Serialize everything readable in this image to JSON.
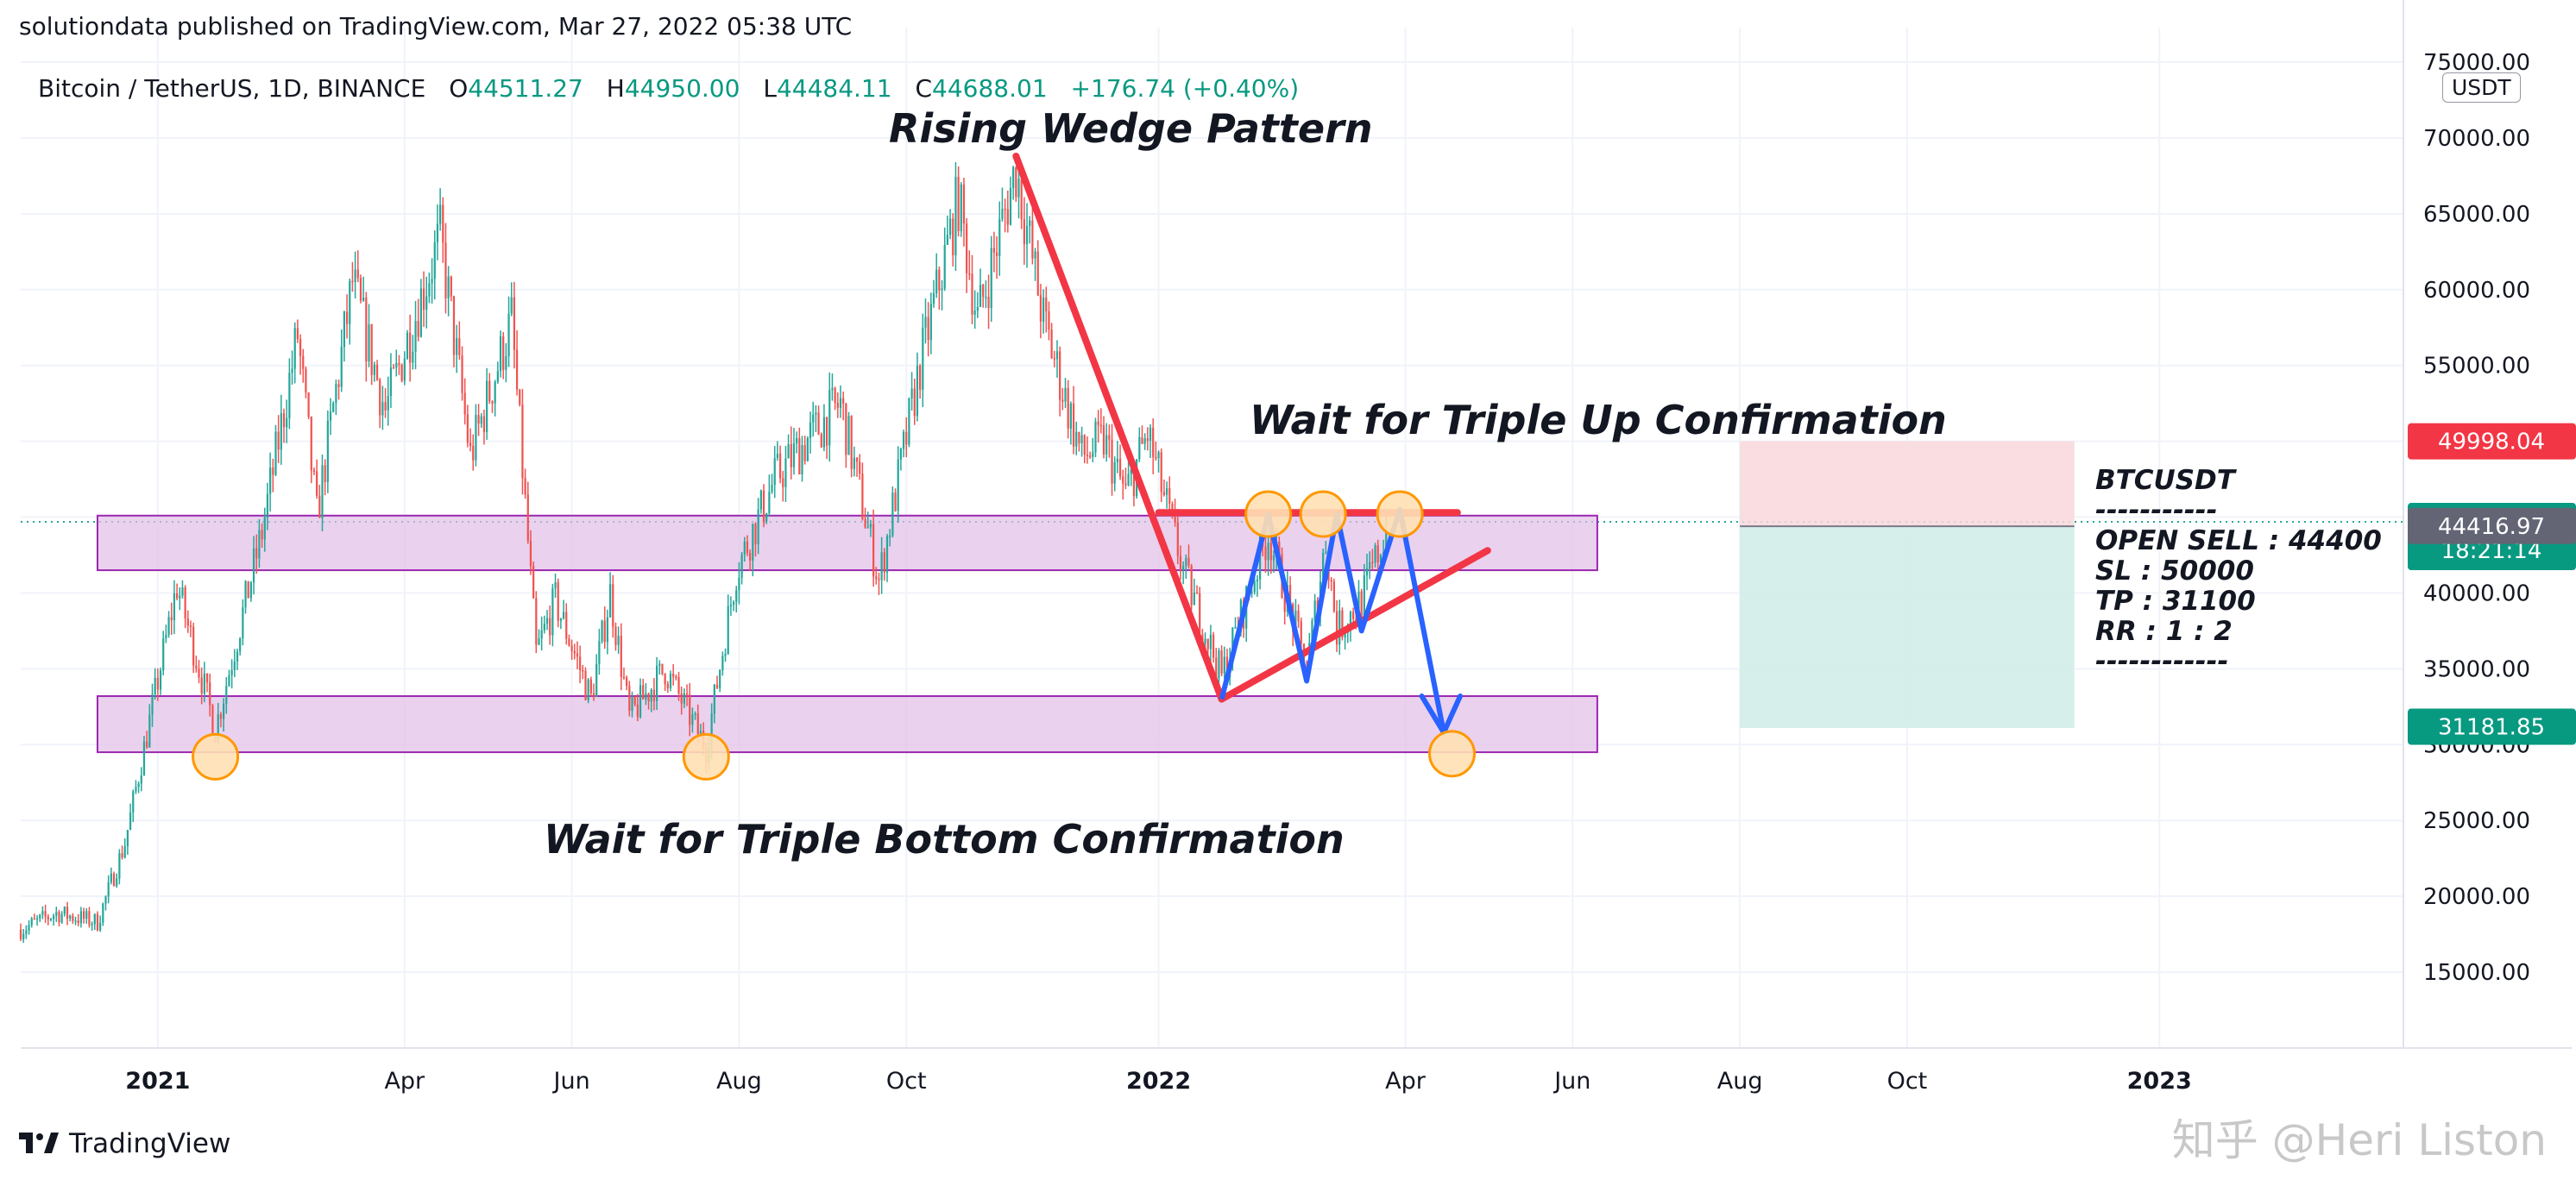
{
  "header": {
    "published": "solutiondata published on TradingView.com, Mar 27, 2022 05:38 UTC"
  },
  "legend": {
    "symbol": "Bitcoin / TetherUS, 1D, BINANCE",
    "open_label": "O",
    "open": "44511.27",
    "high_label": "H",
    "high": "44950.00",
    "low_label": "L",
    "low": "44484.11",
    "close_label": "C",
    "close": "44688.01",
    "change": "+176.74 (+0.40%)"
  },
  "currency_badge": "USDT",
  "annotations": {
    "rising_wedge": "Rising Wedge Pattern",
    "triple_up": "Wait for Triple Up Confirmation",
    "triple_bottom": "Wait for Triple Bottom Confirmation"
  },
  "trade_box": {
    "pair": "BTCUSDT",
    "sep1": "-----------",
    "open": "OPEN SELL : 44400",
    "sl": "SL : 50000",
    "tp": "TP : 31100",
    "rr": "RR : 1 : 2",
    "sep2": "------------"
  },
  "footer": {
    "logo_text": "TradingView",
    "watermark": "知乎 @Heri Liston"
  },
  "colors": {
    "up": "#26a69a",
    "down": "#ef5350",
    "zone_fill": "#e1bee7",
    "zone_stroke": "#9c27b0",
    "wedge": "#f23645",
    "pattern": "#2962ff",
    "marker_fill": "#ffe0b2",
    "marker_stroke": "#ff9800",
    "stop_fill": "#f8d7da",
    "target_fill": "#cfece6",
    "tag_red": "#f23645",
    "tag_green": "#089981",
    "tag_gray": "#636575"
  },
  "chart_data": {
    "type": "candlestick",
    "symbol": "BTCUSDT",
    "timeframe": "1D",
    "y_axis": {
      "ylim": [
        10000,
        75000
      ],
      "ticks": [
        "15000.00",
        "20000.00",
        "25000.00",
        "30000.00",
        "35000.00",
        "40000.00",
        "45000.00",
        "50000.00",
        "55000.00",
        "60000.00",
        "65000.00",
        "70000.00",
        "75000.00"
      ]
    },
    "x_axis": {
      "start": "2020-11-12",
      "end": "2023-03-31",
      "ticks": [
        {
          "label": "2021",
          "date": "2021-01-01",
          "bold": true
        },
        {
          "label": "Apr",
          "date": "2021-04-01"
        },
        {
          "label": "Jun",
          "date": "2021-06-01"
        },
        {
          "label": "Aug",
          "date": "2021-08-01"
        },
        {
          "label": "Oct",
          "date": "2021-10-01"
        },
        {
          "label": "2022",
          "date": "2022-01-01",
          "bold": true
        },
        {
          "label": "Apr",
          "date": "2022-04-01"
        },
        {
          "label": "Jun",
          "date": "2022-06-01"
        },
        {
          "label": "Aug",
          "date": "2022-08-01"
        },
        {
          "label": "Oct",
          "date": "2022-10-01"
        },
        {
          "label": "2023",
          "date": "2023-01-01",
          "bold": true
        }
      ]
    },
    "price_path": [
      [
        "2020-11-12",
        17800
      ],
      [
        "2020-11-25",
        18900
      ],
      [
        "2020-12-10",
        18300
      ],
      [
        "2020-12-20",
        23500
      ],
      [
        "2021-01-08",
        40500
      ],
      [
        "2021-01-22",
        31000
      ],
      [
        "2021-02-08",
        44000
      ],
      [
        "2021-02-21",
        57000
      ],
      [
        "2021-02-28",
        45000
      ],
      [
        "2021-03-13",
        60500
      ],
      [
        "2021-03-25",
        52000
      ],
      [
        "2021-04-14",
        63500
      ],
      [
        "2021-04-25",
        49000
      ],
      [
        "2021-05-10",
        58000
      ],
      [
        "2021-05-19",
        36000
      ],
      [
        "2021-05-26",
        39500
      ],
      [
        "2021-06-08",
        33000
      ],
      [
        "2021-06-15",
        40000
      ],
      [
        "2021-06-22",
        31800
      ],
      [
        "2021-07-05",
        35000
      ],
      [
        "2021-07-20",
        29800
      ],
      [
        "2021-07-31",
        41500
      ],
      [
        "2021-08-14",
        47500
      ],
      [
        "2021-08-23",
        49500
      ],
      [
        "2021-09-07",
        52500
      ],
      [
        "2021-09-21",
        40800
      ],
      [
        "2021-10-06",
        55000
      ],
      [
        "2021-10-20",
        66000
      ],
      [
        "2021-10-27",
        58000
      ],
      [
        "2021-11-10",
        68000
      ],
      [
        "2021-11-20",
        58000
      ],
      [
        "2021-12-04",
        49000
      ],
      [
        "2021-12-12",
        50000
      ],
      [
        "2021-12-20",
        46500
      ],
      [
        "2021-12-28",
        50500
      ],
      [
        "2022-01-10",
        41500
      ],
      [
        "2022-01-24",
        34500
      ],
      [
        "2022-02-10",
        44000
      ],
      [
        "2022-02-24",
        35000
      ],
      [
        "2022-03-03",
        43500
      ],
      [
        "2022-03-07",
        37500
      ],
      [
        "2022-03-16",
        39500
      ],
      [
        "2022-03-26",
        44700
      ]
    ],
    "last_close": 44688.01,
    "price_tags": [
      {
        "value": "49998.04",
        "price": 49998.04,
        "color": "tag_red"
      },
      {
        "value": "44688.01",
        "sub": "18:21:14",
        "price": 44688.01,
        "color": "tag_green"
      },
      {
        "value": "44416.97",
        "price": 44416.97,
        "color": "tag_gray"
      },
      {
        "value": "31181.85",
        "price": 31181.85,
        "color": "tag_green"
      }
    ],
    "zones": [
      {
        "name": "resistance-zone",
        "start": "2020-12-10",
        "end": "2022-06-10",
        "low": 41500,
        "high": 45100
      },
      {
        "name": "support-zone",
        "start": "2020-12-10",
        "end": "2022-06-10",
        "low": 29500,
        "high": 33200
      }
    ],
    "wedge_lines": [
      {
        "name": "wedge-upper-trend",
        "points": [
          [
            "2021-11-10",
            68800
          ],
          [
            "2022-01-24",
            33000
          ]
        ]
      },
      {
        "name": "wedge-lower-trend",
        "points": [
          [
            "2022-01-24",
            33000
          ],
          [
            "2022-05-01",
            42800
          ]
        ]
      },
      {
        "name": "resistance-line",
        "points": [
          [
            "2022-01-01",
            45300
          ],
          [
            "2022-04-20",
            45300
          ]
        ]
      }
    ],
    "pattern_path": [
      [
        "2022-01-24",
        33000
      ],
      [
        "2022-02-10",
        45200
      ],
      [
        "2022-02-24",
        34200
      ],
      [
        "2022-03-07",
        45200
      ],
      [
        "2022-03-16",
        37500
      ],
      [
        "2022-03-30",
        45500
      ],
      [
        "2022-04-15",
        30800
      ]
    ],
    "pattern_arrowhead": [
      [
        "2022-04-07",
        33200
      ],
      [
        "2022-04-15",
        30800
      ],
      [
        "2022-04-21",
        33200
      ]
    ],
    "markers": [
      {
        "date": "2021-01-22",
        "price": 29200
      },
      {
        "date": "2021-07-20",
        "price": 29200
      },
      {
        "date": "2022-02-10",
        "price": 45200
      },
      {
        "date": "2022-03-02",
        "price": 45200
      },
      {
        "date": "2022-03-30",
        "price": 45200
      },
      {
        "date": "2022-04-18",
        "price": 29400
      }
    ],
    "position": {
      "side": "short",
      "start": "2022-08-01",
      "end": "2022-12-01",
      "entry": 44400,
      "stop": 50000,
      "target": 31100
    }
  }
}
